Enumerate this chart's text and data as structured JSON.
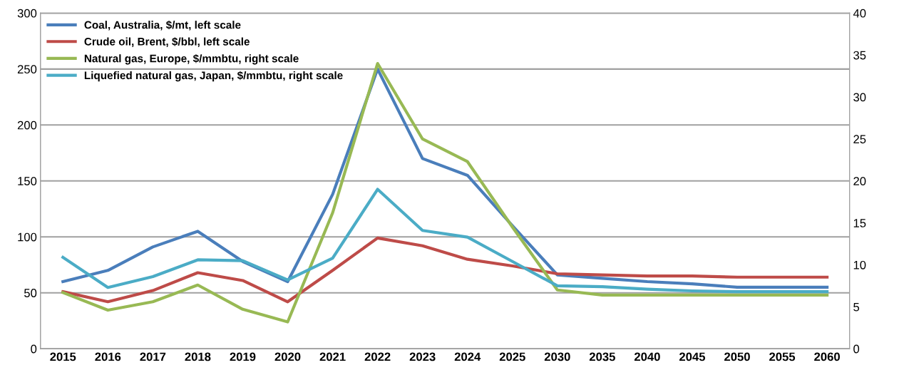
{
  "chart_data": {
    "type": "line",
    "categories": [
      "2015",
      "2016",
      "2017",
      "2018",
      "2019",
      "2020",
      "2021",
      "2022",
      "2023",
      "2024",
      "2025",
      "2030",
      "2035",
      "2040",
      "2045",
      "2050",
      "2055",
      "2060"
    ],
    "series": [
      {
        "name": "Coal, Australia, $/mt, left scale",
        "color": "#4a7ebb",
        "values": [
          60,
          70,
          91,
          105,
          78,
          60,
          138,
          250,
          170,
          155,
          110,
          66,
          63,
          60,
          58,
          55,
          55,
          55
        ]
      },
      {
        "name": "Crude oil, Brent, $/bbl, left scale",
        "color": "#be4b48",
        "values": [
          51,
          42,
          52,
          68,
          61,
          42,
          70,
          99,
          92,
          80,
          74,
          67,
          66,
          65,
          65,
          64,
          64,
          64
        ]
      },
      {
        "name": "Natural gas, Europe, $/mmbtu, right scale",
        "color": "#98b954",
        "axis": "y2",
        "values": [
          6.7,
          4.6,
          5.6,
          7.6,
          4.7,
          3.2,
          16.2,
          34,
          25,
          22.3,
          14.5,
          7.0,
          6.4,
          6.4,
          6.4,
          6.4,
          6.4,
          6.4
        ]
      },
      {
        "name": "Liquefied natural gas, Japan, $/mmbtu, right scale",
        "color": "#4bacc6",
        "axis": "y2",
        "values": [
          10.9,
          7.3,
          8.6,
          10.6,
          10.5,
          8.2,
          10.8,
          19.0,
          14.1,
          13.3,
          10.4,
          7.5,
          7.4,
          7.1,
          6.9,
          6.8,
          6.8,
          6.8
        ]
      }
    ],
    "ylim": [
      0,
      300
    ],
    "yticks": [
      0,
      50,
      100,
      150,
      200,
      250,
      300
    ],
    "y2lim": [
      0,
      40
    ],
    "y2ticks": [
      0,
      5,
      10,
      15,
      20,
      25,
      30,
      35,
      40
    ],
    "grid": "y",
    "legend": "top left",
    "marker": "none",
    "line_style": "solid"
  }
}
